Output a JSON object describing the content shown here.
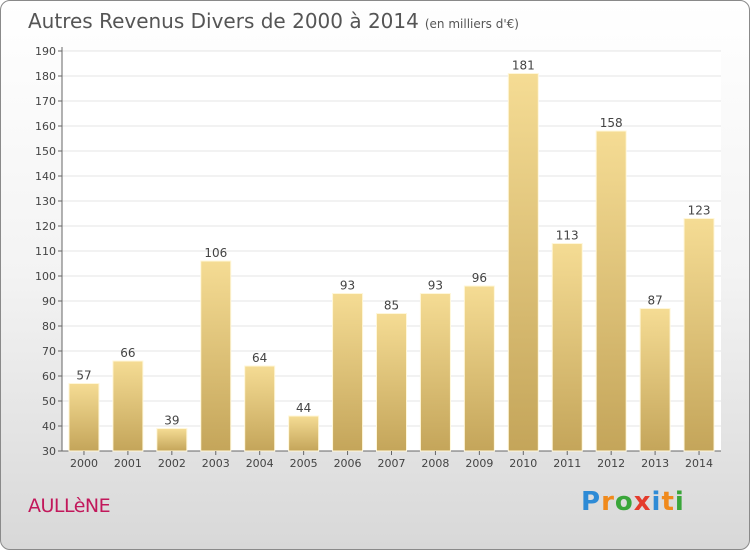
{
  "header": {
    "title": "Autres Revenus Divers de 2000 à 2014",
    "unit": "(en milliers d'€)"
  },
  "footer": {
    "place": "AULLèNE",
    "brand_letters": [
      "P",
      "r",
      "o",
      "x",
      "i",
      "t",
      "i"
    ],
    "brand_colors": [
      "#2e8bd6",
      "#f08a1c",
      "#3aa63a",
      "#e43b2c",
      "#2e8bd6",
      "#f08a1c",
      "#3aa63a"
    ]
  },
  "chart_data": {
    "type": "bar",
    "categories": [
      "2000",
      "2001",
      "2002",
      "2003",
      "2004",
      "2005",
      "2006",
      "2007",
      "2008",
      "2009",
      "2010",
      "2011",
      "2012",
      "2013",
      "2014"
    ],
    "values": [
      57,
      66,
      39,
      106,
      64,
      44,
      93,
      85,
      93,
      96,
      181,
      113,
      158,
      87,
      123
    ],
    "ylim": [
      30,
      190
    ],
    "yticks": [
      30,
      40,
      50,
      60,
      70,
      80,
      90,
      100,
      110,
      120,
      130,
      140,
      150,
      160,
      170,
      180,
      190
    ],
    "grid": true,
    "bar_color_light": "#f5dc94",
    "bar_color_dark": "#c4a55a"
  }
}
